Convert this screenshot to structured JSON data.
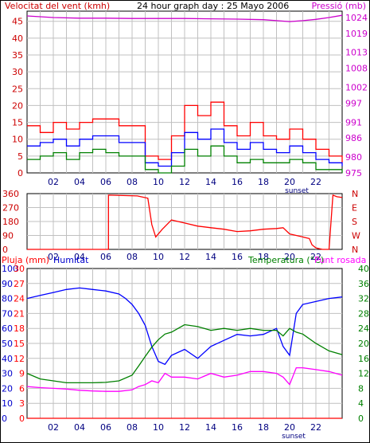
{
  "chart_data": [
    {
      "type": "line",
      "panel": "wind-pressure",
      "title": "24 hour graph day : 25 Mayo 2006",
      "ylabel_left": "Velocitat del vent (kmh)",
      "ylabel_right": "Pressió (mb)",
      "x_tick_labels": [
        "02",
        "04",
        "06",
        "08",
        "10",
        "12",
        "14",
        "16",
        "18",
        "20",
        "22"
      ],
      "x_annotation": "sunset",
      "left_ticks": [
        "0",
        "5",
        "10",
        "15",
        "20",
        "25",
        "30",
        "35",
        "40",
        "45"
      ],
      "right_ticks": [
        "975",
        "980",
        "986",
        "991",
        "997",
        "1002",
        "1008",
        "1013",
        "1019",
        "1024"
      ],
      "ylim_left": [
        0,
        48
      ],
      "ylim_right": [
        975,
        1026
      ],
      "grid": true,
      "colors": {
        "gust": "#ff0000",
        "average": "#0000ff",
        "minimum": "#008000",
        "pressure": "#cc00cc"
      },
      "series": [
        {
          "key": "gust",
          "axis": "left",
          "x": [
            0,
            1,
            2,
            3,
            4,
            5,
            6,
            7,
            8,
            9,
            10,
            11,
            12,
            13,
            14,
            15,
            16,
            17,
            18,
            19,
            20,
            21,
            22,
            23,
            24
          ],
          "values": [
            14,
            12,
            15,
            13,
            15,
            16,
            16,
            14,
            14,
            5,
            4,
            11,
            20,
            17,
            21,
            14,
            11,
            15,
            11,
            10,
            13,
            10,
            7,
            5,
            3
          ]
        },
        {
          "key": "average",
          "axis": "left",
          "x": [
            0,
            1,
            2,
            3,
            4,
            5,
            6,
            7,
            8,
            9,
            10,
            11,
            12,
            13,
            14,
            15,
            16,
            17,
            18,
            19,
            20,
            21,
            22,
            23,
            24
          ],
          "values": [
            8,
            9,
            10,
            8,
            10,
            11,
            11,
            9,
            9,
            3,
            2,
            6,
            12,
            10,
            13,
            9,
            7,
            9,
            7,
            6,
            8,
            6,
            4,
            3,
            2
          ]
        },
        {
          "key": "minimum",
          "axis": "left",
          "x": [
            0,
            1,
            2,
            3,
            4,
            5,
            6,
            7,
            8,
            9,
            10,
            11,
            12,
            13,
            14,
            15,
            16,
            17,
            18,
            19,
            20,
            21,
            22,
            23,
            24
          ],
          "values": [
            4,
            5,
            6,
            4,
            6,
            7,
            6,
            5,
            5,
            1,
            0,
            2,
            7,
            5,
            8,
            5,
            3,
            4,
            3,
            3,
            4,
            3,
            1,
            1,
            0
          ]
        },
        {
          "key": "pressure",
          "axis": "right",
          "x": [
            0,
            2,
            4,
            6,
            8,
            10,
            12,
            14,
            16,
            18,
            19,
            20,
            21,
            22,
            23,
            24
          ],
          "values": [
            1024.5,
            1024.0,
            1023.8,
            1023.8,
            1023.7,
            1023.7,
            1023.7,
            1023.6,
            1023.5,
            1023.3,
            1023.0,
            1022.7,
            1023.0,
            1023.4,
            1024.0,
            1024.7
          ]
        }
      ]
    },
    {
      "type": "line",
      "panel": "wind-direction",
      "x_tick_labels": [
        "02",
        "04",
        "06",
        "08",
        "10",
        "12",
        "14",
        "16",
        "18",
        "20",
        "22"
      ],
      "left_ticks": [
        "0",
        "90",
        "180",
        "270",
        "360"
      ],
      "right_labels": [
        "N",
        "W",
        "S",
        "E",
        "N"
      ],
      "ylim": [
        0,
        360
      ],
      "grid": true,
      "colors": {
        "direction": "#ff0000"
      },
      "series": [
        {
          "key": "direction",
          "x": [
            0,
            6.2,
            6.2,
            8.4,
            9.2,
            9.5,
            9.8,
            10.3,
            11.0,
            12,
            13,
            14,
            15,
            16,
            17,
            18,
            19,
            19.5,
            20,
            20.5,
            21,
            21.5,
            21.7,
            22,
            22.5,
            23,
            23.3,
            23.6,
            24
          ],
          "values": [
            0,
            0,
            350,
            345,
            330,
            160,
            80,
            130,
            190,
            170,
            150,
            140,
            130,
            115,
            120,
            130,
            135,
            140,
            100,
            90,
            80,
            70,
            30,
            10,
            0,
            0,
            350,
            340,
            335
          ]
        }
      ]
    },
    {
      "type": "line",
      "panel": "rain-humidity-temperature",
      "legend": [
        "Pluja (mm)",
        "Humitat",
        "Temperatura (°C)",
        "Punt rosada"
      ],
      "x_tick_labels": [
        "02",
        "04",
        "06",
        "08",
        "10",
        "12",
        "14",
        "16",
        "18",
        "20",
        "22"
      ],
      "x_annotation": "sunset",
      "rain_ticks": [
        "0",
        "3",
        "6",
        "9",
        "12",
        "15",
        "18",
        "21",
        "24",
        "27",
        "30"
      ],
      "humidity_ticks": [
        "0",
        "10",
        "20",
        "30",
        "40",
        "50",
        "60",
        "70",
        "80",
        "90",
        "100"
      ],
      "temperature_ticks": [
        "0",
        "4",
        "8",
        "12",
        "16",
        "20",
        "24",
        "28",
        "32",
        "36",
        "40"
      ],
      "ylim_rain": [
        0,
        30
      ],
      "ylim_humidity": [
        0,
        100
      ],
      "ylim_temperature": [
        0,
        40
      ],
      "grid": true,
      "colors": {
        "rain": "#ff0000",
        "humidity": "#0000ff",
        "temperature": "#008000",
        "dew_point": "#ff00ff"
      },
      "series": [
        {
          "key": "rain",
          "axis": "rain",
          "x": [
            0,
            24
          ],
          "values": [
            0,
            0
          ]
        },
        {
          "key": "humidity",
          "axis": "humidity",
          "x": [
            0,
            1,
            2,
            3,
            4,
            5,
            6,
            7,
            7.5,
            8,
            8.5,
            9,
            9.5,
            10,
            10.5,
            11,
            12,
            13,
            14,
            15,
            16,
            17,
            18,
            19,
            19.5,
            20,
            20.5,
            21,
            22,
            23,
            24
          ],
          "values": [
            80,
            82,
            84,
            86,
            87,
            86,
            85,
            83,
            80,
            76,
            70,
            62,
            48,
            38,
            36,
            42,
            46,
            40,
            48,
            52,
            56,
            55,
            56,
            60,
            48,
            42,
            70,
            76,
            78,
            80,
            81
          ]
        },
        {
          "key": "temperature",
          "axis": "temperature",
          "x": [
            0,
            1,
            2,
            3,
            4,
            5,
            6,
            7,
            8,
            8.5,
            9,
            9.5,
            10,
            10.5,
            11,
            11.5,
            12,
            13,
            14,
            15,
            16,
            17,
            18,
            19,
            19.5,
            20,
            20.5,
            21,
            22,
            23,
            24
          ],
          "values": [
            12,
            10.5,
            10,
            9.5,
            9.5,
            9.5,
            9.6,
            10,
            11.5,
            14,
            16.5,
            19,
            21,
            22.5,
            23,
            24,
            25,
            24.5,
            23.5,
            24,
            23.5,
            24,
            23.5,
            23.5,
            22,
            24,
            23,
            22.5,
            20,
            18,
            17
          ]
        },
        {
          "key": "dew_point",
          "axis": "temperature",
          "x": [
            0,
            1,
            2,
            3,
            4,
            5,
            6,
            7,
            8,
            8.5,
            9,
            9.5,
            10,
            10.5,
            11,
            12,
            13,
            14,
            15,
            16,
            17,
            18,
            19,
            19.5,
            20,
            20.5,
            21,
            22,
            23,
            24
          ],
          "values": [
            8.5,
            8.2,
            8,
            7.8,
            7.5,
            7.3,
            7.2,
            7.2,
            7.6,
            8.5,
            9,
            10,
            9.5,
            12,
            11,
            11,
            10.5,
            12,
            11,
            11.5,
            12.5,
            12.5,
            12,
            11,
            9,
            13.5,
            13.5,
            13,
            12.5,
            11.5
          ]
        }
      ]
    }
  ]
}
